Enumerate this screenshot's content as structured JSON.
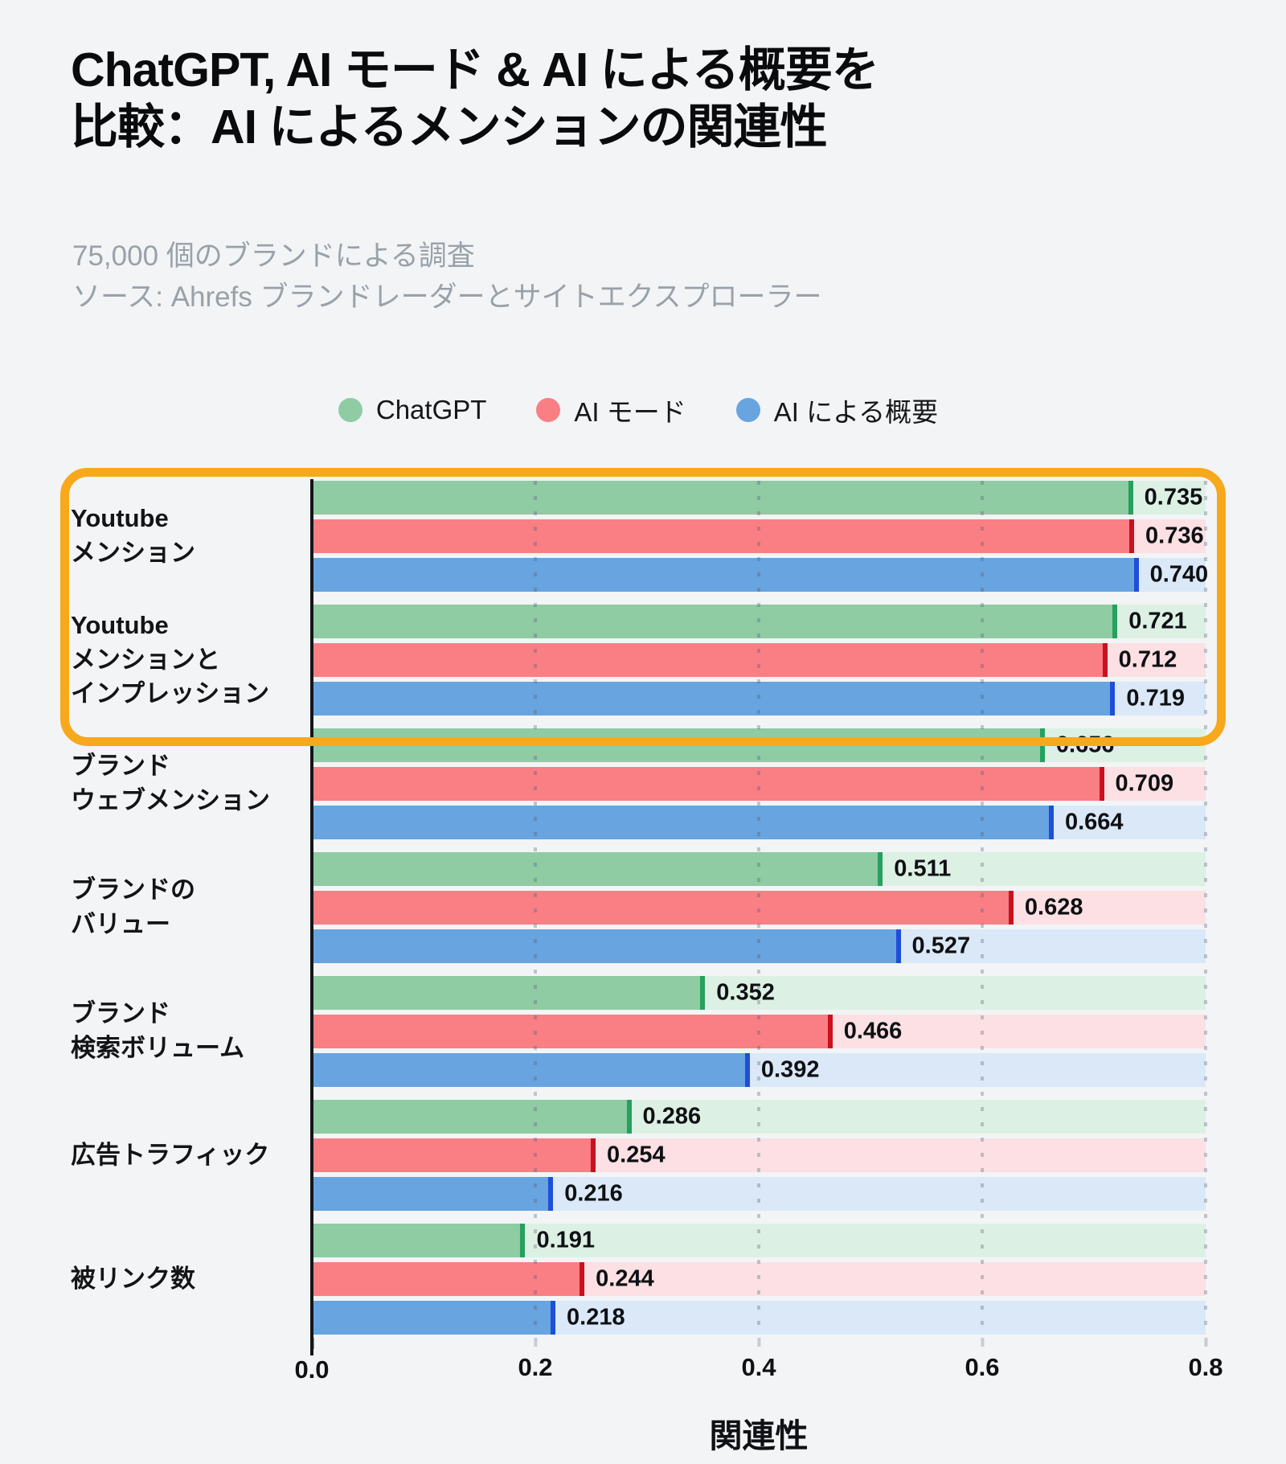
{
  "page": {
    "background": "#F2F4F6",
    "highlight_color": "#F8A81B",
    "subtitle_color": "#99A1A9"
  },
  "title_line1": "ChatGPT, AI モード & AI による概要を",
  "title_line2": "比較：AI によるメンションの関連性",
  "subtitle_line1": "75,000 個のブランドによる調査",
  "subtitle_line2": "ソース: Ahrefs ブランドレーダーとサイトエクスプローラー",
  "chart_data": {
    "type": "bar",
    "orientation": "horizontal",
    "xlabel": "関連性",
    "xlim": [
      0,
      0.8
    ],
    "xticks": [
      "0.0",
      "0.2",
      "0.4",
      "0.6",
      "0.8"
    ],
    "grid": "dotted-vertical",
    "legend_position": "top-center",
    "categories": [
      "Youtube\nメンション",
      "Youtube\nメンションと\nインプレッション",
      "ブランド\nウェブメンション",
      "ブランドの\nバリュー",
      "ブランド\n検索ボリューム",
      "広告トラフィック",
      "被リンク数"
    ],
    "series": [
      {
        "name": "ChatGPT",
        "color": "#8FCBA3",
        "cap_color": "#27A05E",
        "track_color": "#DDF0E4",
        "values": [
          0.735,
          0.721,
          0.656,
          0.511,
          0.352,
          0.286,
          0.191
        ]
      },
      {
        "name": "AI モード",
        "color": "#F97F84",
        "cap_color": "#C9111F",
        "track_color": "#FCE0E3",
        "values": [
          0.736,
          0.712,
          0.709,
          0.628,
          0.466,
          0.254,
          0.244
        ]
      },
      {
        "name": "AI による概要",
        "color": "#68A4DF",
        "cap_color": "#1F4FD8",
        "track_color": "#DBE8F8",
        "values": [
          0.74,
          0.719,
          0.664,
          0.527,
          0.392,
          0.216,
          0.218
        ]
      }
    ],
    "value_label_decimals": 3,
    "highlighted_category_indexes": [
      0,
      1
    ]
  }
}
